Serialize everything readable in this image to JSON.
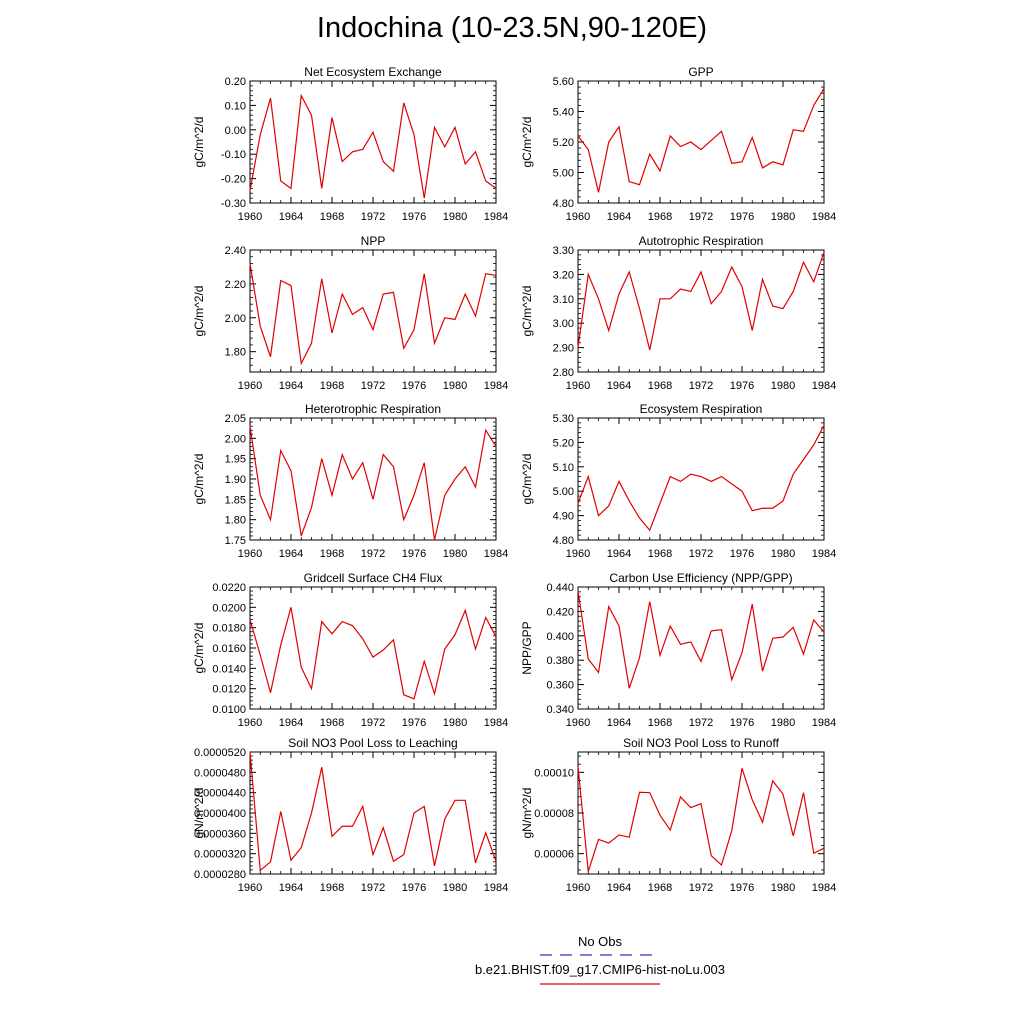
{
  "page": {
    "title": "Indochina (10-23.5N,90-120E)"
  },
  "legend": {
    "obs_label": "No Obs",
    "obs_color": "#3333cc",
    "model_label": "b.e21.BHIST.f09_g17.CMIP6-hist-noLu.003",
    "model_color": "#e00000"
  },
  "chart_data": [
    {
      "type": "line",
      "title": "Net Ecosystem Exchange",
      "ylabel": "gC/m^2/d",
      "xlim": [
        1960,
        1984
      ],
      "ylim": [
        -0.3,
        0.2
      ],
      "xticks": [
        1960,
        1964,
        1968,
        1972,
        1976,
        1980,
        1984
      ],
      "xtick_labels": [
        "1960",
        "1964",
        "1968",
        "1972",
        "1976",
        "1980",
        "1984"
      ],
      "yticks": [
        -0.3,
        -0.2,
        -0.1,
        0.0,
        0.1,
        0.2
      ],
      "ytick_labels": [
        "-0.30",
        "-0.20",
        "-0.10",
        "0.00",
        "0.10",
        "0.20"
      ],
      "x": [
        1960,
        1961,
        1962,
        1963,
        1964,
        1965,
        1966,
        1967,
        1968,
        1969,
        1970,
        1971,
        1972,
        1973,
        1974,
        1975,
        1976,
        1977,
        1978,
        1979,
        1980,
        1981,
        1982,
        1983,
        1984
      ],
      "series": [
        {
          "name": "b.e21.BHIST.f09_g17.CMIP6-hist-noLu.003",
          "values": [
            -0.25,
            -0.02,
            0.13,
            -0.21,
            -0.24,
            0.14,
            0.06,
            -0.24,
            0.05,
            -0.13,
            -0.09,
            -0.08,
            -0.01,
            -0.13,
            -0.17,
            0.11,
            -0.02,
            -0.28,
            0.01,
            -0.07,
            0.01,
            -0.14,
            -0.09,
            -0.21,
            -0.24
          ]
        }
      ]
    },
    {
      "type": "line",
      "title": "GPP",
      "ylabel": "gC/m^2/d",
      "xlim": [
        1960,
        1984
      ],
      "ylim": [
        4.8,
        5.6
      ],
      "xticks": [
        1960,
        1964,
        1968,
        1972,
        1976,
        1980,
        1984
      ],
      "xtick_labels": [
        "1960",
        "1964",
        "1968",
        "1972",
        "1976",
        "1980",
        "1984"
      ],
      "yticks": [
        4.8,
        5.0,
        5.2,
        5.4,
        5.6
      ],
      "ytick_labels": [
        "4.80",
        "5.00",
        "5.20",
        "5.40",
        "5.60"
      ],
      "x": [
        1960,
        1961,
        1962,
        1963,
        1964,
        1965,
        1966,
        1967,
        1968,
        1969,
        1970,
        1971,
        1972,
        1973,
        1974,
        1975,
        1976,
        1977,
        1978,
        1979,
        1980,
        1981,
        1982,
        1983,
        1984
      ],
      "series": [
        {
          "name": "b.e21.BHIST.f09_g17.CMIP6-hist-noLu.003",
          "values": [
            5.24,
            5.15,
            4.87,
            5.2,
            5.3,
            4.94,
            4.92,
            5.12,
            5.01,
            5.24,
            5.17,
            5.2,
            5.15,
            5.21,
            5.27,
            5.06,
            5.07,
            5.23,
            5.03,
            5.07,
            5.05,
            5.28,
            5.27,
            5.44,
            5.55
          ]
        }
      ]
    },
    {
      "type": "line",
      "title": "NPP",
      "ylabel": "gC/m^2/d",
      "xlim": [
        1960,
        1984
      ],
      "ylim": [
        1.68,
        2.4
      ],
      "xticks": [
        1960,
        1964,
        1968,
        1972,
        1976,
        1980,
        1984
      ],
      "xtick_labels": [
        "1960",
        "1964",
        "1968",
        "1972",
        "1976",
        "1980",
        "1984"
      ],
      "yticks": [
        1.8,
        2.0,
        2.2,
        2.4
      ],
      "ytick_labels": [
        "1.80",
        "2.00",
        "2.20",
        "2.40"
      ],
      "x": [
        1960,
        1961,
        1962,
        1963,
        1964,
        1965,
        1966,
        1967,
        1968,
        1969,
        1970,
        1971,
        1972,
        1973,
        1974,
        1975,
        1976,
        1977,
        1978,
        1979,
        1980,
        1981,
        1982,
        1983,
        1984
      ],
      "series": [
        {
          "name": "b.e21.BHIST.f09_g17.CMIP6-hist-noLu.003",
          "values": [
            2.32,
            1.95,
            1.77,
            2.22,
            2.19,
            1.73,
            1.85,
            2.23,
            1.91,
            2.14,
            2.02,
            2.06,
            1.93,
            2.14,
            2.15,
            1.82,
            1.93,
            2.26,
            1.85,
            2.0,
            1.99,
            2.14,
            2.01,
            2.26,
            2.25
          ]
        }
      ]
    },
    {
      "type": "line",
      "title": "Autotrophic Respiration",
      "ylabel": "gC/m^2/d",
      "xlim": [
        1960,
        1984
      ],
      "ylim": [
        2.8,
        3.3
      ],
      "xticks": [
        1960,
        1964,
        1968,
        1972,
        1976,
        1980,
        1984
      ],
      "xtick_labels": [
        "1960",
        "1964",
        "1968",
        "1972",
        "1976",
        "1980",
        "1984"
      ],
      "yticks": [
        2.8,
        2.9,
        3.0,
        3.1,
        3.2,
        3.3
      ],
      "ytick_labels": [
        "2.80",
        "2.90",
        "3.00",
        "3.10",
        "3.20",
        "3.30"
      ],
      "x": [
        1960,
        1961,
        1962,
        1963,
        1964,
        1965,
        1966,
        1967,
        1968,
        1969,
        1970,
        1971,
        1972,
        1973,
        1974,
        1975,
        1976,
        1977,
        1978,
        1979,
        1980,
        1981,
        1982,
        1983,
        1984
      ],
      "series": [
        {
          "name": "b.e21.BHIST.f09_g17.CMIP6-hist-noLu.003",
          "values": [
            2.9,
            3.2,
            3.1,
            2.97,
            3.12,
            3.21,
            3.06,
            2.89,
            3.1,
            3.1,
            3.14,
            3.13,
            3.21,
            3.08,
            3.13,
            3.23,
            3.15,
            2.97,
            3.18,
            3.07,
            3.06,
            3.13,
            3.25,
            3.17,
            3.29
          ]
        }
      ]
    },
    {
      "type": "line",
      "title": "Heterotrophic Respiration",
      "ylabel": "gC/m^2/d",
      "xlim": [
        1960,
        1984
      ],
      "ylim": [
        1.75,
        2.05
      ],
      "xticks": [
        1960,
        1964,
        1968,
        1972,
        1976,
        1980,
        1984
      ],
      "xtick_labels": [
        "1960",
        "1964",
        "1968",
        "1972",
        "1976",
        "1980",
        "1984"
      ],
      "yticks": [
        1.75,
        1.8,
        1.85,
        1.9,
        1.95,
        2.0,
        2.05
      ],
      "ytick_labels": [
        "1.75",
        "1.80",
        "1.85",
        "1.90",
        "1.95",
        "2.00",
        "2.05"
      ],
      "x": [
        1960,
        1961,
        1962,
        1963,
        1964,
        1965,
        1966,
        1967,
        1968,
        1969,
        1970,
        1971,
        1972,
        1973,
        1974,
        1975,
        1976,
        1977,
        1978,
        1979,
        1980,
        1981,
        1982,
        1983,
        1984
      ],
      "series": [
        {
          "name": "b.e21.BHIST.f09_g17.CMIP6-hist-noLu.003",
          "values": [
            2.03,
            1.86,
            1.8,
            1.97,
            1.92,
            1.76,
            1.83,
            1.95,
            1.86,
            1.96,
            1.9,
            1.94,
            1.85,
            1.96,
            1.93,
            1.8,
            1.86,
            1.94,
            1.75,
            1.86,
            1.9,
            1.93,
            1.88,
            2.02,
            1.98
          ]
        }
      ]
    },
    {
      "type": "line",
      "title": "Ecosystem Respiration",
      "ylabel": "gC/m^2/d",
      "xlim": [
        1960,
        1984
      ],
      "ylim": [
        4.8,
        5.3
      ],
      "xticks": [
        1960,
        1964,
        1968,
        1972,
        1976,
        1980,
        1984
      ],
      "xtick_labels": [
        "1960",
        "1964",
        "1968",
        "1972",
        "1976",
        "1980",
        "1984"
      ],
      "yticks": [
        4.8,
        4.9,
        5.0,
        5.1,
        5.2,
        5.3
      ],
      "ytick_labels": [
        "4.80",
        "4.90",
        "5.00",
        "5.10",
        "5.20",
        "5.30"
      ],
      "x": [
        1960,
        1961,
        1962,
        1963,
        1964,
        1965,
        1966,
        1967,
        1968,
        1969,
        1970,
        1971,
        1972,
        1973,
        1974,
        1975,
        1976,
        1977,
        1978,
        1979,
        1980,
        1981,
        1982,
        1983,
        1984
      ],
      "series": [
        {
          "name": "b.e21.BHIST.f09_g17.CMIP6-hist-noLu.003",
          "values": [
            4.95,
            5.06,
            4.9,
            4.94,
            5.04,
            4.96,
            4.89,
            4.84,
            4.95,
            5.06,
            5.04,
            5.07,
            5.06,
            5.04,
            5.06,
            5.03,
            5.0,
            4.92,
            4.93,
            4.93,
            4.96,
            5.07,
            5.13,
            5.19,
            5.27
          ]
        }
      ]
    },
    {
      "type": "line",
      "title": "Gridcell Surface CH4 Flux",
      "ylabel": "gC/m^2/d",
      "xlim": [
        1960,
        1984
      ],
      "ylim": [
        0.01,
        0.022
      ],
      "xticks": [
        1960,
        1964,
        1968,
        1972,
        1976,
        1980,
        1984
      ],
      "xtick_labels": [
        "1960",
        "1964",
        "1968",
        "1972",
        "1976",
        "1980",
        "1984"
      ],
      "yticks": [
        0.01,
        0.012,
        0.014,
        0.016,
        0.018,
        0.02,
        0.022
      ],
      "ytick_labels": [
        "0.0100",
        "0.0120",
        "0.0140",
        "0.0160",
        "0.0180",
        "0.0200",
        "0.0220"
      ],
      "x": [
        1960,
        1961,
        1962,
        1963,
        1964,
        1965,
        1966,
        1967,
        1968,
        1969,
        1970,
        1971,
        1972,
        1973,
        1974,
        1975,
        1976,
        1977,
        1978,
        1979,
        1980,
        1981,
        1982,
        1983,
        1984
      ],
      "series": [
        {
          "name": "b.e21.BHIST.f09_g17.CMIP6-hist-noLu.003",
          "values": [
            0.0188,
            0.0153,
            0.0116,
            0.0163,
            0.02,
            0.0141,
            0.012,
            0.0186,
            0.0174,
            0.0186,
            0.0182,
            0.0169,
            0.0151,
            0.0158,
            0.0168,
            0.0114,
            0.011,
            0.0147,
            0.0115,
            0.0159,
            0.0173,
            0.0197,
            0.0159,
            0.019,
            0.0171
          ]
        }
      ]
    },
    {
      "type": "line",
      "title": "Carbon Use Efficiency (NPP/GPP)",
      "ylabel": "NPP/GPP",
      "xlim": [
        1960,
        1984
      ],
      "ylim": [
        0.34,
        0.44
      ],
      "xticks": [
        1960,
        1964,
        1968,
        1972,
        1976,
        1980,
        1984
      ],
      "xtick_labels": [
        "1960",
        "1964",
        "1968",
        "1972",
        "1976",
        "1980",
        "1984"
      ],
      "yticks": [
        0.34,
        0.36,
        0.38,
        0.4,
        0.42,
        0.44
      ],
      "ytick_labels": [
        "0.340",
        "0.360",
        "0.380",
        "0.400",
        "0.420",
        "0.440"
      ],
      "x": [
        1960,
        1961,
        1962,
        1963,
        1964,
        1965,
        1966,
        1967,
        1968,
        1969,
        1970,
        1971,
        1972,
        1973,
        1974,
        1975,
        1976,
        1977,
        1978,
        1979,
        1980,
        1981,
        1982,
        1983,
        1984
      ],
      "series": [
        {
          "name": "b.e21.BHIST.f09_g17.CMIP6-hist-noLu.003",
          "values": [
            0.437,
            0.381,
            0.37,
            0.424,
            0.408,
            0.357,
            0.382,
            0.428,
            0.384,
            0.408,
            0.393,
            0.395,
            0.379,
            0.404,
            0.405,
            0.364,
            0.386,
            0.426,
            0.371,
            0.398,
            0.399,
            0.407,
            0.385,
            0.413,
            0.403
          ]
        }
      ]
    },
    {
      "type": "line",
      "title": "Soil NO3 Pool Loss to Leaching",
      "ylabel": "gN/m^2/d",
      "xlim": [
        1960,
        1984
      ],
      "ylim": [
        2.8e-05,
        5.2e-05
      ],
      "xticks": [
        1960,
        1964,
        1968,
        1972,
        1976,
        1980,
        1984
      ],
      "xtick_labels": [
        "1960",
        "1964",
        "1968",
        "1972",
        "1976",
        "1980",
        "1984"
      ],
      "yticks": [
        2.8e-05,
        3.2e-05,
        3.6e-05,
        4e-05,
        4.4e-05,
        4.8e-05,
        5.2e-05
      ],
      "ytick_labels": [
        "0.0000280",
        "0.0000320",
        "0.0000360",
        "0.0000400",
        "0.0000440",
        "0.0000480",
        "0.0000520"
      ],
      "x": [
        1960,
        1961,
        1962,
        1963,
        1964,
        1965,
        1966,
        1967,
        1968,
        1969,
        1970,
        1971,
        1972,
        1973,
        1974,
        1975,
        1976,
        1977,
        1978,
        1979,
        1980,
        1981,
        1982,
        1983,
        1984
      ],
      "series": [
        {
          "name": "b.e21.BHIST.f09_g17.CMIP6-hist-noLu.003",
          "values": [
            5.2e-05,
            2.87e-05,
            3.04e-05,
            4.03e-05,
            3.07e-05,
            3.32e-05,
            4e-05,
            4.9e-05,
            3.54e-05,
            3.74e-05,
            3.74e-05,
            4.13e-05,
            3.18e-05,
            3.71e-05,
            3.05e-05,
            3.18e-05,
            4e-05,
            4.13e-05,
            2.96e-05,
            3.88e-05,
            4.25e-05,
            4.25e-05,
            3.02e-05,
            3.61e-05,
            3.05e-05
          ]
        }
      ]
    },
    {
      "type": "line",
      "title": "Soil NO3 Pool Loss to Runoff",
      "ylabel": "gN/m^2/d",
      "xlim": [
        1960,
        1984
      ],
      "ylim": [
        5e-05,
        0.00011
      ],
      "xticks": [
        1960,
        1964,
        1968,
        1972,
        1976,
        1980,
        1984
      ],
      "xtick_labels": [
        "1960",
        "1964",
        "1968",
        "1972",
        "1976",
        "1980",
        "1984"
      ],
      "yticks": [
        6e-05,
        8e-05,
        0.0001
      ],
      "ytick_labels": [
        "0.00006",
        "0.00008",
        "0.00010"
      ],
      "x": [
        1960,
        1961,
        1962,
        1963,
        1964,
        1965,
        1966,
        1967,
        1968,
        1969,
        1970,
        1971,
        1972,
        1973,
        1974,
        1975,
        1976,
        1977,
        1978,
        1979,
        1980,
        1981,
        1982,
        1983,
        1984
      ],
      "series": [
        {
          "name": "b.e21.BHIST.f09_g17.CMIP6-hist-noLu.003",
          "values": [
            0.000103,
            5.12e-05,
            6.7e-05,
            6.52e-05,
            6.92e-05,
            6.81e-05,
            9.02e-05,
            9e-05,
            7.89e-05,
            7.16e-05,
            8.79e-05,
            8.26e-05,
            8.46e-05,
            5.9e-05,
            5.44e-05,
            7.13e-05,
            0.000102,
            8.65e-05,
            7.55e-05,
            9.58e-05,
            8.93e-05,
            6.87e-05,
            9e-05,
            6.02e-05,
            6.27e-05
          ]
        }
      ]
    }
  ]
}
